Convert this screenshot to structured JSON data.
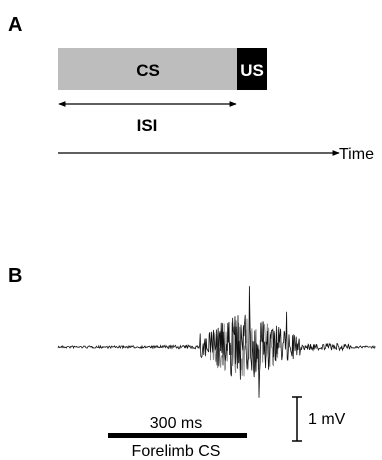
{
  "panel_a": {
    "label": "A",
    "cs_label": "CS",
    "us_label": "US",
    "isi_label": "ISI",
    "time_label": "Time"
  },
  "panel_b": {
    "label": "B",
    "time_scale_label": "300 ms",
    "stimulus_label": "Forelimb CS",
    "voltage_scale_label": "1 mV"
  },
  "colors": {
    "cs_box": "#bdbdbd",
    "us_box": "#000000",
    "trace": "#111111",
    "trace_overlay": "#8c8c8c"
  }
}
